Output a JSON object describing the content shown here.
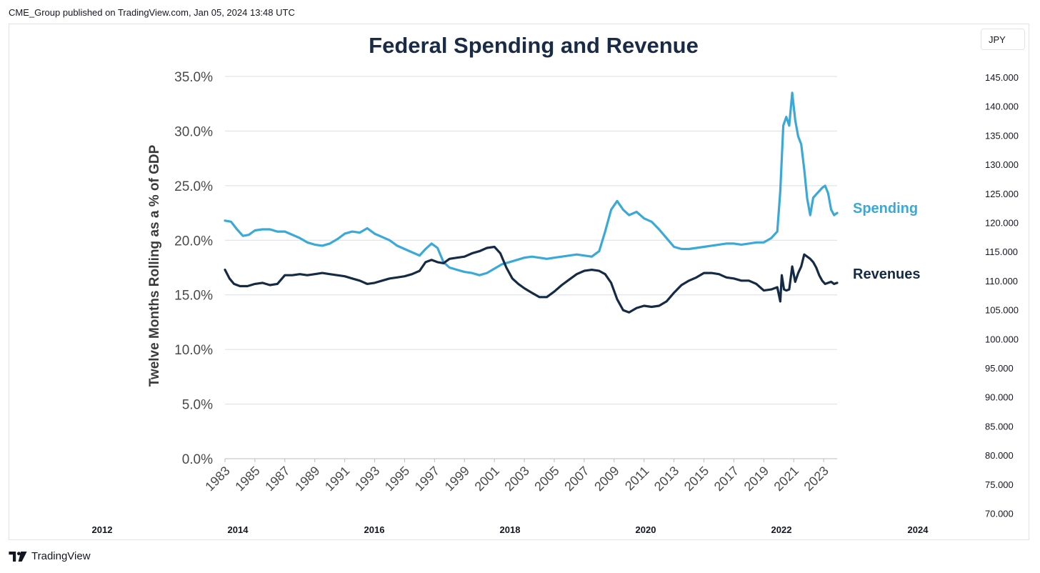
{
  "publisher_line": "CME_Group published on TradingView.com, Jan 05, 2024 13:48 UTC",
  "currency_button": "JPY",
  "footer_brand": "TradingView",
  "icons": {
    "brand_logo": "tradingview-logo-icon"
  },
  "colors": {
    "spending": "#3aa9d8",
    "revenues": "#152a45",
    "title": "#1a2b47",
    "grid": "#d9dde3"
  },
  "chart_data": {
    "type": "line",
    "title": "Federal Spending and Revenue",
    "ylabel": "Twelve Months Rolling as a % of GDP",
    "ylim": [
      0,
      35
    ],
    "y_ticks": [
      "0.0%",
      "5.0%",
      "10.0%",
      "15.0%",
      "20.0%",
      "25.0%",
      "30.0%",
      "35.0%"
    ],
    "xlim": [
      1983,
      2023.9
    ],
    "x_ticks": [
      "1983",
      "1985",
      "1987",
      "1989",
      "1991",
      "1993",
      "1995",
      "1997",
      "1999",
      "2001",
      "2003",
      "2005",
      "2007",
      "2009",
      "2011",
      "2013",
      "2015",
      "2017",
      "2019",
      "2021",
      "2023"
    ],
    "series": [
      {
        "name": "Spending",
        "x": [
          1983.0,
          1983.4,
          1983.8,
          1984.2,
          1984.6,
          1985.0,
          1985.5,
          1986.0,
          1986.5,
          1987.0,
          1987.5,
          1988.0,
          1988.5,
          1989.0,
          1989.5,
          1990.0,
          1990.5,
          1991.0,
          1991.5,
          1992.0,
          1992.5,
          1993.0,
          1993.5,
          1994.0,
          1994.5,
          1995.0,
          1995.5,
          1996.0,
          1996.4,
          1996.8,
          1997.2,
          1997.6,
          1998.0,
          1998.5,
          1999.0,
          1999.5,
          2000.0,
          2000.5,
          2001.0,
          2001.5,
          2002.0,
          2002.5,
          2003.0,
          2003.5,
          2004.0,
          2004.5,
          2005.0,
          2005.5,
          2006.0,
          2006.5,
          2007.0,
          2007.5,
          2008.0,
          2008.4,
          2008.8,
          2009.2,
          2009.6,
          2010.0,
          2010.5,
          2011.0,
          2011.5,
          2012.0,
          2012.5,
          2013.0,
          2013.5,
          2014.0,
          2014.5,
          2015.0,
          2015.5,
          2016.0,
          2016.5,
          2017.0,
          2017.5,
          2018.0,
          2018.5,
          2019.0,
          2019.5,
          2019.9,
          2020.1,
          2020.3,
          2020.5,
          2020.7,
          2020.9,
          2021.1,
          2021.3,
          2021.5,
          2021.7,
          2021.9,
          2022.1,
          2022.3,
          2022.5,
          2022.7,
          2022.9,
          2023.1,
          2023.3,
          2023.5,
          2023.7,
          2023.9
        ],
        "values": [
          21.8,
          21.7,
          21.0,
          20.4,
          20.5,
          20.9,
          21.0,
          21.0,
          20.8,
          20.8,
          20.5,
          20.2,
          19.8,
          19.6,
          19.5,
          19.7,
          20.1,
          20.6,
          20.8,
          20.7,
          21.1,
          20.6,
          20.3,
          20.0,
          19.5,
          19.2,
          18.9,
          18.6,
          19.2,
          19.7,
          19.3,
          18.0,
          17.5,
          17.3,
          17.1,
          17.0,
          16.8,
          17.0,
          17.4,
          17.8,
          18.0,
          18.2,
          18.4,
          18.5,
          18.4,
          18.3,
          18.4,
          18.5,
          18.6,
          18.7,
          18.6,
          18.5,
          19.0,
          20.8,
          22.8,
          23.6,
          22.8,
          22.3,
          22.6,
          22.0,
          21.7,
          21.0,
          20.2,
          19.4,
          19.2,
          19.2,
          19.3,
          19.4,
          19.5,
          19.6,
          19.7,
          19.7,
          19.6,
          19.7,
          19.8,
          19.8,
          20.2,
          20.8,
          24.5,
          30.5,
          31.3,
          30.5,
          33.5,
          31.0,
          29.5,
          28.8,
          26.5,
          23.8,
          22.3,
          23.9,
          24.2,
          24.5,
          24.8,
          25.0,
          24.3,
          22.8,
          22.3,
          22.5
        ]
      },
      {
        "name": "Revenues",
        "x": [
          1983.0,
          1983.3,
          1983.6,
          1984.0,
          1984.5,
          1985.0,
          1985.5,
          1986.0,
          1986.5,
          1987.0,
          1987.5,
          1988.0,
          1988.5,
          1989.0,
          1989.5,
          1990.0,
          1990.5,
          1991.0,
          1991.5,
          1992.0,
          1992.5,
          1993.0,
          1993.5,
          1994.0,
          1994.5,
          1995.0,
          1995.5,
          1996.0,
          1996.4,
          1996.8,
          1997.2,
          1997.6,
          1998.0,
          1998.5,
          1999.0,
          1999.5,
          2000.0,
          2000.5,
          2001.0,
          2001.4,
          2001.8,
          2002.2,
          2002.6,
          2003.0,
          2003.5,
          2004.0,
          2004.5,
          2005.0,
          2005.5,
          2006.0,
          2006.5,
          2007.0,
          2007.5,
          2008.0,
          2008.4,
          2008.8,
          2009.2,
          2009.6,
          2010.0,
          2010.5,
          2011.0,
          2011.5,
          2012.0,
          2012.5,
          2013.0,
          2013.5,
          2014.0,
          2014.5,
          2015.0,
          2015.5,
          2016.0,
          2016.5,
          2017.0,
          2017.5,
          2018.0,
          2018.5,
          2019.0,
          2019.5,
          2019.9,
          2020.1,
          2020.2,
          2020.35,
          2020.5,
          2020.7,
          2020.9,
          2021.1,
          2021.3,
          2021.5,
          2021.7,
          2021.9,
          2022.1,
          2022.3,
          2022.5,
          2022.7,
          2022.9,
          2023.1,
          2023.3,
          2023.5,
          2023.7,
          2023.9
        ],
        "values": [
          17.3,
          16.5,
          16.0,
          15.8,
          15.8,
          16.0,
          16.1,
          15.9,
          16.0,
          16.8,
          16.8,
          16.9,
          16.8,
          16.9,
          17.0,
          16.9,
          16.8,
          16.7,
          16.5,
          16.3,
          16.0,
          16.1,
          16.3,
          16.5,
          16.6,
          16.7,
          16.9,
          17.2,
          18.0,
          18.2,
          18.0,
          17.9,
          18.3,
          18.4,
          18.5,
          18.8,
          19.0,
          19.3,
          19.4,
          18.8,
          17.5,
          16.5,
          16.0,
          15.6,
          15.2,
          14.8,
          14.8,
          15.3,
          15.9,
          16.4,
          16.9,
          17.2,
          17.3,
          17.2,
          16.9,
          16.1,
          14.6,
          13.6,
          13.4,
          13.8,
          14.0,
          13.9,
          14.0,
          14.4,
          15.2,
          15.9,
          16.3,
          16.6,
          17.0,
          17.0,
          16.9,
          16.6,
          16.5,
          16.3,
          16.3,
          16.0,
          15.4,
          15.5,
          15.7,
          14.4,
          16.8,
          15.5,
          15.4,
          15.5,
          17.6,
          16.2,
          17.0,
          17.6,
          18.7,
          18.5,
          18.3,
          18.0,
          17.5,
          16.8,
          16.3,
          16.0,
          16.1,
          16.2,
          16.0,
          16.1
        ]
      }
    ],
    "right_axis": {
      "label": "JPY",
      "ticks": [
        "145.000",
        "140.000",
        "135.000",
        "130.000",
        "125.000",
        "120.000",
        "115.000",
        "110.000",
        "105.000",
        "100.000",
        "95.000",
        "90.000",
        "85.000",
        "80.000",
        "75.000",
        "70.000"
      ]
    },
    "time_axis": {
      "ticks": [
        "2012",
        "2014",
        "2016",
        "2018",
        "2020",
        "2022",
        "2024"
      ]
    }
  }
}
